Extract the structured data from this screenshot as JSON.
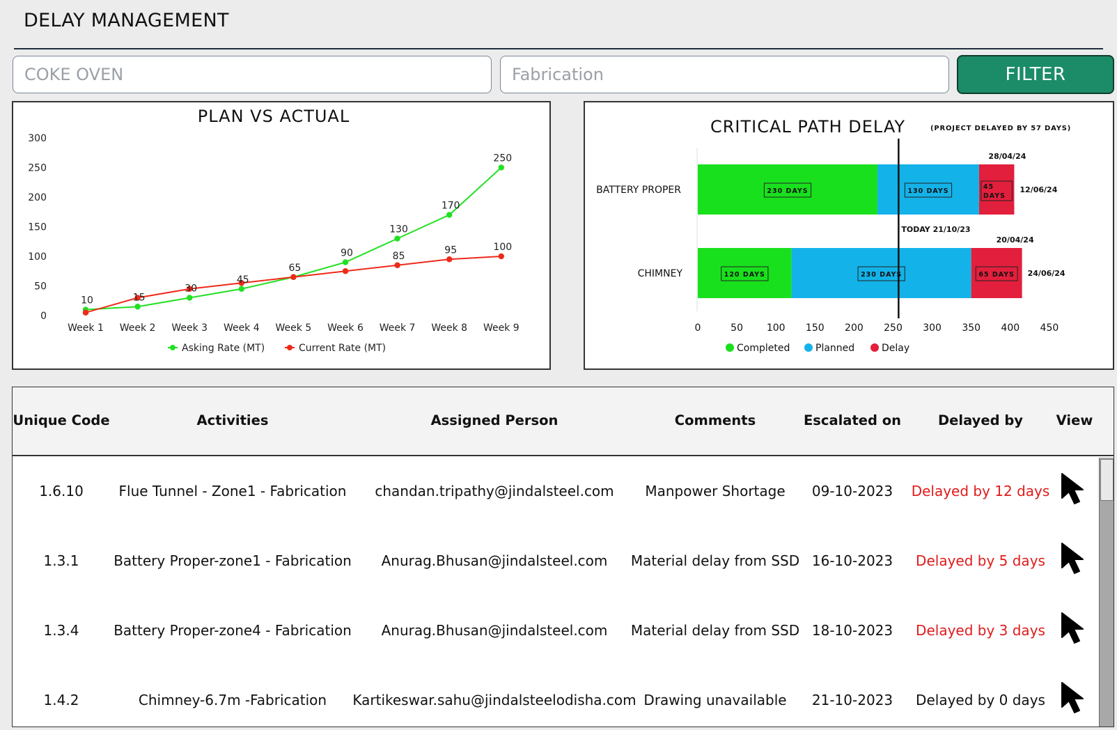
{
  "app": {
    "title": "DELAY MANAGEMENT"
  },
  "filters": {
    "field1_placeholder": "COKE OVEN",
    "field2_placeholder": "Fabrication",
    "filter_label": "FILTER"
  },
  "colors": {
    "asking": "#22e022",
    "current": "#ee2a1a",
    "completed": "#19e01d",
    "planned": "#13b2e8",
    "delay": "#e21f3c",
    "filter_bg": "#1b8c67",
    "delay_text": "#e01b1b"
  },
  "chart_data": [
    {
      "type": "line",
      "title": "PLAN VS ACTUAL",
      "categories": [
        "Week 1",
        "Week 2",
        "Week 3",
        "Week 4",
        "Week 5",
        "Week 6",
        "Week 7",
        "Week 8",
        "Week 9"
      ],
      "series": [
        {
          "name": "Asking Rate (MT)",
          "values": [
            10,
            15,
            30,
            45,
            65,
            90,
            130,
            170,
            250
          ]
        },
        {
          "name": "Current Rate (MT)",
          "values": [
            5,
            30,
            45,
            55,
            65,
            75,
            85,
            95,
            100
          ]
        }
      ],
      "data_labels": [
        "10",
        "15",
        "30",
        "45",
        "65",
        "90",
        "130",
        "170",
        "250"
      ],
      "data_labels_2": [
        "",
        "",
        "",
        "",
        "",
        "",
        "85",
        "95",
        "100"
      ],
      "yticks": [
        "0",
        "50",
        "100",
        "150",
        "200",
        "250",
        "300"
      ],
      "ylim": [
        0,
        300
      ],
      "legend": "bottom",
      "grid": false
    },
    {
      "type": "bar",
      "orientation": "horizontal-stacked",
      "title": "CRITICAL PATH DELAY",
      "subtitle": "(PROJECT DELAYED BY 57 DAYS)",
      "categories": [
        "BATTERY PROPER",
        "CHIMNEY"
      ],
      "series": [
        {
          "name": "Completed",
          "values": [
            230,
            120
          ]
        },
        {
          "name": "Planned",
          "values": [
            130,
            230
          ]
        },
        {
          "name": "Delay",
          "values": [
            45,
            65
          ]
        }
      ],
      "bar_labels": [
        [
          "230 DAYS",
          "130 DAYS",
          "45 DAYS"
        ],
        [
          "120 DAYS",
          "230 DAYS",
          "65 DAYS"
        ]
      ],
      "date_labels_top": [
        "28/04/24",
        "20/04/24"
      ],
      "date_labels_end": [
        "12/06/24",
        "24/06/24"
      ],
      "today_value": 257,
      "today_label": "TODAY 21/10/23",
      "xticks": [
        "0",
        "50",
        "100",
        "150",
        "200",
        "250",
        "300",
        "350",
        "400",
        "450"
      ],
      "xlim": [
        0,
        450
      ],
      "legend": "bottom",
      "grid": false
    }
  ],
  "table": {
    "headers": [
      "Unique Code",
      "Activities",
      "Assigned Person",
      "Comments",
      "Escalated on",
      "Delayed by",
      "View"
    ],
    "rows": [
      {
        "code": "1.6.10",
        "activity": "Flue Tunnel - Zone1 - Fabrication",
        "person": "chandan.tripathy@jindalsteel.com",
        "comment": "Manpower Shortage",
        "escalated": "09-10-2023",
        "delayed": "Delayed by 12 days",
        "red": true
      },
      {
        "code": "1.3.1",
        "activity": "Battery Proper-zone1 - Fabrication",
        "person": "Anurag.Bhusan@jindalsteel.com",
        "comment": "Material delay from SSD",
        "escalated": "16-10-2023",
        "delayed": "Delayed by 5 days",
        "red": true
      },
      {
        "code": "1.3.4",
        "activity": "Battery Proper-zone4 - Fabrication",
        "person": "Anurag.Bhusan@jindalsteel.com",
        "comment": "Material delay from SSD",
        "escalated": "18-10-2023",
        "delayed": "Delayed by 3 days",
        "red": true
      },
      {
        "code": "1.4.2",
        "activity": "Chimney-6.7m -Fabrication",
        "person": "Kartikeswar.sahu@jindalsteelodisha.com",
        "comment": "Drawing unavailable",
        "escalated": "21-10-2023",
        "delayed": "Delayed by 0 days",
        "red": false
      }
    ]
  }
}
